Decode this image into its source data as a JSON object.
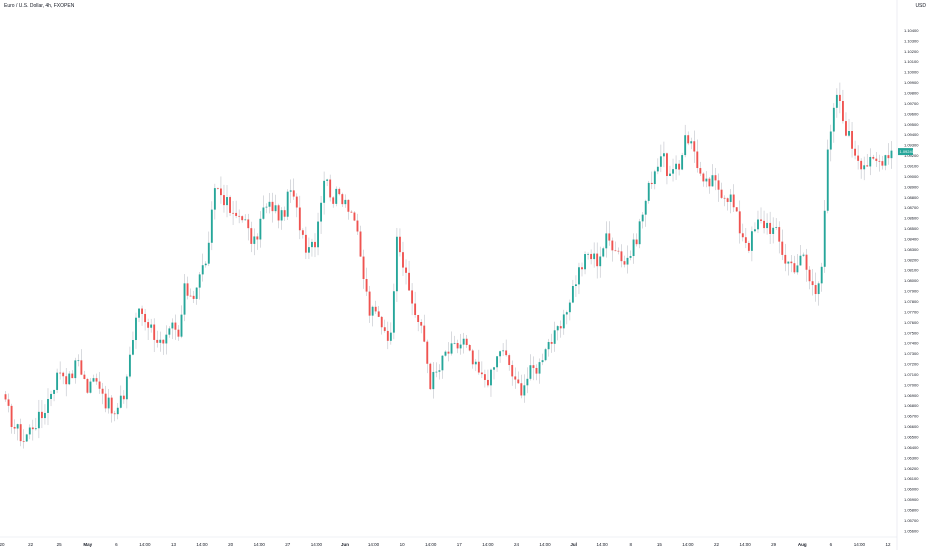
{
  "header": {
    "title": "Euro / U.S. Dollar, 4h, FXOPEN",
    "currency": "USD"
  },
  "colors": {
    "up": "#26a69a",
    "down": "#ef5350",
    "wick": "#b2b5be",
    "price_tag": "#26a69a"
  },
  "chart_data": {
    "type": "candlestick",
    "title": "Euro / U.S. Dollar, 4h, FXOPEN",
    "currency": "USD",
    "ylim": [
      1.056,
      1.1056
    ],
    "y_ticks": [
      "1.10400",
      "1.10300",
      "1.10200",
      "1.10100",
      "1.10000",
      "1.09900",
      "1.09800",
      "1.09700",
      "1.09600",
      "1.09500",
      "1.09400",
      "1.09300",
      "1.09200",
      "1.09100",
      "1.09000",
      "1.08900",
      "1.08800",
      "1.08700",
      "1.08600",
      "1.08500",
      "1.08400",
      "1.08300",
      "1.08200",
      "1.08100",
      "1.08000",
      "1.07900",
      "1.07800",
      "1.07700",
      "1.07600",
      "1.07500",
      "1.07400",
      "1.07300",
      "1.07200",
      "1.07100",
      "1.07000",
      "1.06900",
      "1.06800",
      "1.06700",
      "1.06600",
      "1.06500",
      "1.06400",
      "1.06300",
      "1.06200",
      "1.06100",
      "1.06000",
      "1.05900",
      "1.05800",
      "1.05700",
      "1.05600"
    ],
    "x_ticks": [
      {
        "label": "20",
        "bold": false
      },
      {
        "label": "22",
        "bold": false
      },
      {
        "label": "25",
        "bold": false
      },
      {
        "label": "May",
        "bold": true
      },
      {
        "label": "6",
        "bold": false
      },
      {
        "label": "14:00",
        "bold": false
      },
      {
        "label": "13",
        "bold": false
      },
      {
        "label": "14:00",
        "bold": false
      },
      {
        "label": "20",
        "bold": false
      },
      {
        "label": "14:00",
        "bold": false
      },
      {
        "label": "27",
        "bold": false
      },
      {
        "label": "14:00",
        "bold": false
      },
      {
        "label": "Jun",
        "bold": true
      },
      {
        "label": "14:00",
        "bold": false
      },
      {
        "label": "10",
        "bold": false
      },
      {
        "label": "14:00",
        "bold": false
      },
      {
        "label": "17",
        "bold": false
      },
      {
        "label": "14:00",
        "bold": false
      },
      {
        "label": "24",
        "bold": false
      },
      {
        "label": "14:00",
        "bold": false
      },
      {
        "label": "Jul",
        "bold": true
      },
      {
        "label": "14:00",
        "bold": false
      },
      {
        "label": "8",
        "bold": false
      },
      {
        "label": "15",
        "bold": false
      },
      {
        "label": "14:00",
        "bold": false
      },
      {
        "label": "22",
        "bold": false
      },
      {
        "label": "14:00",
        "bold": false
      },
      {
        "label": "29",
        "bold": false
      },
      {
        "label": "Aug",
        "bold": true
      },
      {
        "label": "6",
        "bold": false
      },
      {
        "label": "14:00",
        "bold": false
      },
      {
        "label": "12",
        "bold": false
      }
    ],
    "close_path": [
      [
        0,
        1.068
      ],
      [
        3,
        1.066
      ],
      [
        6,
        1.0648
      ],
      [
        9,
        1.0662
      ],
      [
        12,
        1.067
      ],
      [
        15,
        1.0695
      ],
      [
        18,
        1.0715
      ],
      [
        21,
        1.0705
      ],
      [
        24,
        1.0725
      ],
      [
        27,
        1.0695
      ],
      [
        30,
        1.071
      ],
      [
        33,
        1.0685
      ],
      [
        36,
        1.067
      ],
      [
        39,
        1.069
      ],
      [
        41,
        1.073
      ],
      [
        44,
        1.0775
      ],
      [
        47,
        1.076
      ],
      [
        49,
        1.075
      ],
      [
        52,
        1.0735
      ],
      [
        55,
        1.0755
      ],
      [
        57,
        1.0745
      ],
      [
        59,
        1.079
      ],
      [
        62,
        1.0788
      ],
      [
        65,
        1.0812
      ],
      [
        67,
        1.083
      ],
      [
        69,
        1.0892
      ],
      [
        72,
        1.088
      ],
      [
        75,
        1.086
      ],
      [
        78,
        1.0865
      ],
      [
        80,
        1.0845
      ],
      [
        82,
        1.0835
      ],
      [
        85,
        1.0868
      ],
      [
        88,
        1.0872
      ],
      [
        91,
        1.086
      ],
      [
        94,
        1.0887
      ],
      [
        97,
        1.0855
      ],
      [
        99,
        1.0835
      ],
      [
        102,
        1.084
      ],
      [
        105,
        1.09
      ],
      [
        108,
        1.088
      ],
      [
        110,
        1.0882
      ],
      [
        112,
        1.088
      ],
      [
        115,
        1.086
      ],
      [
        117,
        1.082
      ],
      [
        120,
        1.077
      ],
      [
        122,
        1.0768
      ],
      [
        124,
        1.076
      ],
      [
        127,
        1.0745
      ],
      [
        129,
        1.085
      ],
      [
        132,
        1.08
      ],
      [
        135,
        1.077
      ],
      [
        138,
        1.0742
      ],
      [
        140,
        1.0703
      ],
      [
        143,
        1.0715
      ],
      [
        145,
        1.073
      ],
      [
        148,
        1.0735
      ],
      [
        151,
        1.0742
      ],
      [
        154,
        1.072
      ],
      [
        157,
        1.0706
      ],
      [
        160,
        1.0708
      ],
      [
        163,
        1.0735
      ],
      [
        166,
        1.072
      ],
      [
        168,
        1.07
      ],
      [
        170,
        1.0698
      ],
      [
        173,
        1.0712
      ],
      [
        176,
        1.072
      ],
      [
        178,
        1.074
      ],
      [
        181,
        1.0745
      ],
      [
        184,
        1.076
      ],
      [
        186,
        1.0785
      ],
      [
        189,
        1.081
      ],
      [
        192,
        1.0825
      ],
      [
        195,
        1.082
      ],
      [
        198,
        1.084
      ],
      [
        201,
        1.0835
      ],
      [
        204,
        1.0818
      ],
      [
        207,
        1.0832
      ],
      [
        210,
        1.0865
      ],
      [
        213,
        1.09
      ],
      [
        216,
        1.0922
      ],
      [
        219,
        1.09
      ],
      [
        222,
        1.0907
      ],
      [
        224,
        1.0943
      ],
      [
        227,
        1.0925
      ],
      [
        230,
        1.089
      ],
      [
        233,
        1.0895
      ],
      [
        236,
        1.0887
      ],
      [
        239,
        1.088
      ],
      [
        242,
        1.085
      ],
      [
        245,
        1.0835
      ],
      [
        248,
        1.0855
      ],
      [
        251,
        1.0855
      ],
      [
        254,
        1.0845
      ],
      [
        257,
        1.082
      ],
      [
        260,
        1.0815
      ],
      [
        263,
        1.0822
      ],
      [
        265,
        1.08
      ],
      [
        267,
        1.079
      ],
      [
        269,
        1.082
      ],
      [
        271,
        1.092
      ],
      [
        274,
        1.098
      ],
      [
        276,
        1.0955
      ],
      [
        279,
        1.093
      ],
      [
        282,
        1.0915
      ],
      [
        285,
        1.0912
      ],
      [
        288,
        1.0915
      ],
      [
        290,
        1.0922
      ],
      [
        292,
        1.0926
      ]
    ],
    "last_price": "1.09240"
  }
}
